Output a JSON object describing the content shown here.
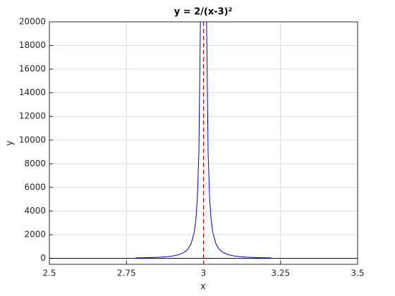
{
  "chart_data": {
    "type": "line",
    "title": "y = 2/(x-3)²",
    "xlabel": "x",
    "ylabel": "y",
    "x": [
      2.78,
      2.8,
      2.82,
      2.84,
      2.86,
      2.88,
      2.9,
      2.92,
      2.94,
      2.95,
      2.96,
      2.97,
      2.975,
      2.98,
      2.985,
      2.99,
      3,
      3.01,
      3.015,
      3.02,
      3.025,
      3.03,
      3.04,
      3.05,
      3.06,
      3.08,
      3.1,
      3.12,
      3.14,
      3.16,
      3.18,
      3.2,
      3.22
    ],
    "series": [
      {
        "color": "#0000cc",
        "values": [
          41.3,
          50,
          61.7,
          78.1,
          102,
          138.9,
          200,
          312.5,
          555.6,
          800,
          1250,
          2222,
          3200,
          5000,
          8889,
          20000,
          null,
          20000,
          8889,
          5000,
          3200,
          2222,
          1250,
          800,
          555.6,
          312.5,
          200,
          138.9,
          102,
          78.1,
          61.7,
          50,
          41.3
        ]
      }
    ],
    "vline": {
      "value": 3,
      "color": "#cc0000"
    },
    "hline": {
      "value": 0,
      "color": "#000000"
    },
    "xlim": [
      2.5,
      3.5
    ],
    "xticks": [
      2.5,
      2.75,
      3,
      3.25,
      3.5
    ],
    "ylim": [
      -500,
      20000
    ],
    "yticks": [
      0,
      2000,
      4000,
      6000,
      8000,
      10000,
      12000,
      14000,
      16000,
      18000,
      20000
    ],
    "grid": true
  }
}
